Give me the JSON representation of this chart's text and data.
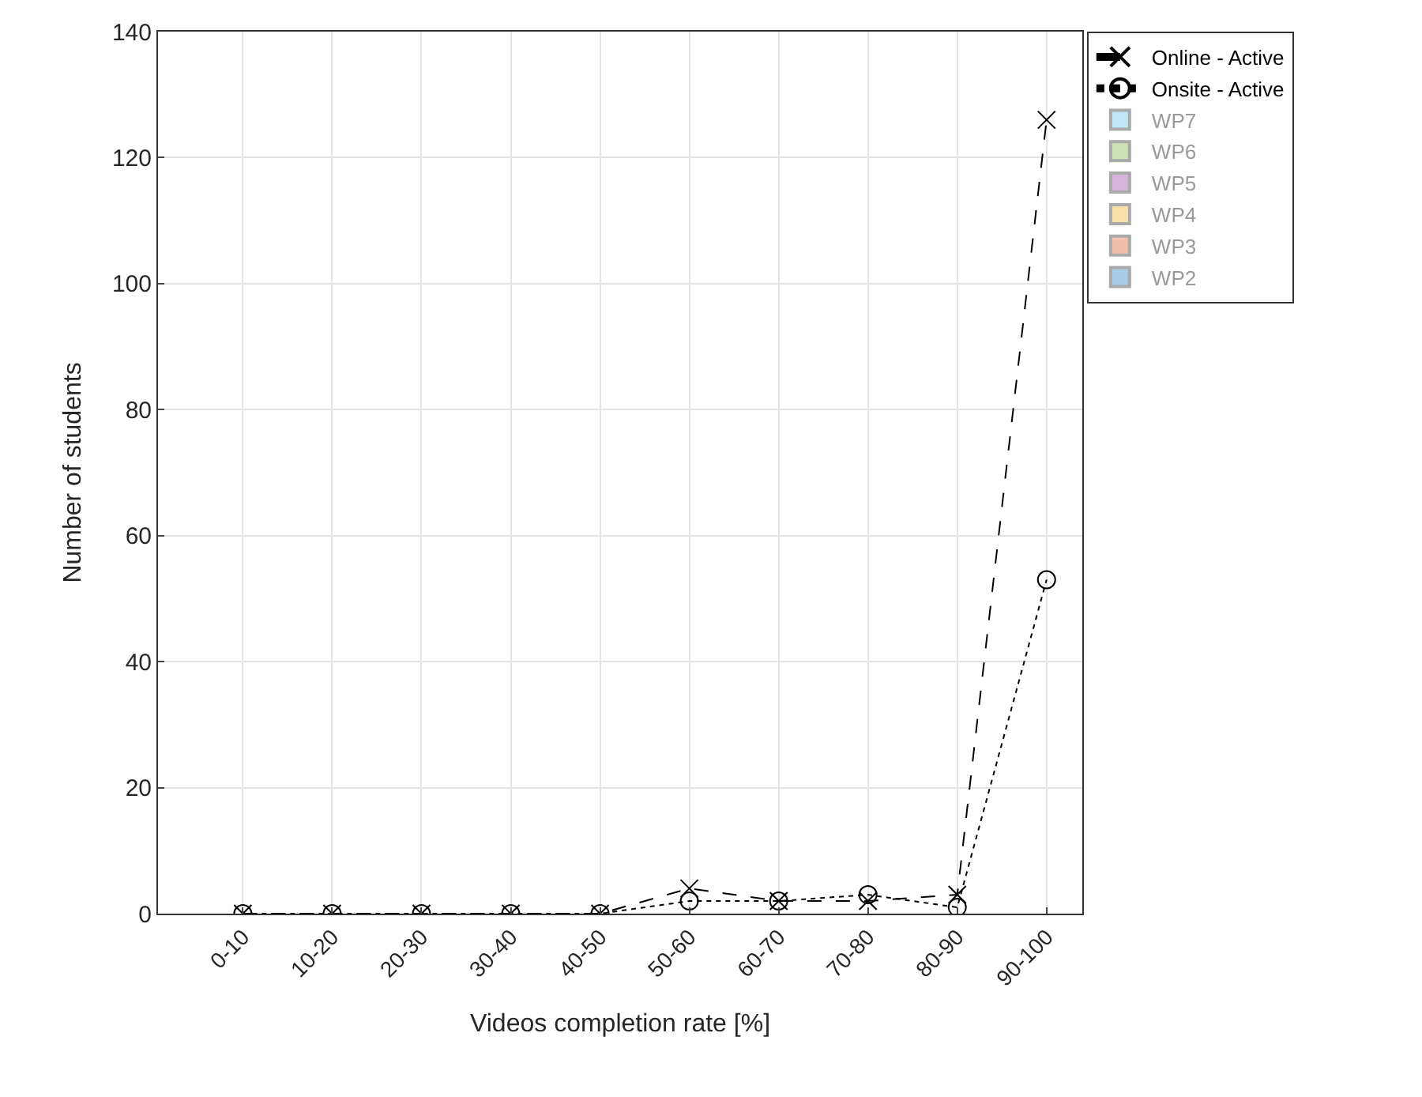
{
  "chart_data": {
    "type": "line",
    "xlabel": "Videos completion rate [%]",
    "ylabel": "Number of students",
    "categories": [
      "0-10",
      "10-20",
      "20-30",
      "30-40",
      "40-50",
      "50-60",
      "60-70",
      "70-80",
      "80-90",
      "90-100"
    ],
    "series": [
      {
        "name": "Online - Active",
        "color": "#000000",
        "marker": "cross",
        "line_style": "dashed",
        "values": [
          0,
          0,
          0,
          0,
          0,
          4,
          2,
          2,
          3,
          126
        ]
      },
      {
        "name": "Onsite - Active",
        "color": "#000000",
        "marker": "circle",
        "line_style": "dotted",
        "values": [
          0,
          0,
          0,
          0,
          0,
          2,
          2,
          3,
          1,
          53
        ]
      },
      {
        "name": "WP7",
        "type": "bar",
        "color": "#bfe6f7",
        "values": [
          null,
          null,
          null,
          null,
          null,
          null,
          null,
          null,
          null,
          null
        ]
      },
      {
        "name": "WP6",
        "type": "bar",
        "color": "#cfe2b6",
        "values": [
          null,
          null,
          null,
          null,
          null,
          null,
          null,
          null,
          null,
          null
        ]
      },
      {
        "name": "WP5",
        "type": "bar",
        "color": "#d4b5d9",
        "values": [
          null,
          null,
          null,
          null,
          null,
          null,
          null,
          null,
          null,
          null
        ]
      },
      {
        "name": "WP4",
        "type": "bar",
        "color": "#f8e2aa",
        "values": [
          null,
          null,
          null,
          null,
          null,
          null,
          null,
          null,
          null,
          null
        ]
      },
      {
        "name": "WP3",
        "type": "bar",
        "color": "#f2c0aa",
        "values": [
          null,
          null,
          null,
          null,
          null,
          null,
          null,
          null,
          null,
          null
        ]
      },
      {
        "name": "WP2",
        "type": "bar",
        "color": "#a8cde8",
        "values": [
          null,
          null,
          null,
          null,
          null,
          null,
          null,
          null,
          null,
          null
        ]
      }
    ],
    "ylim": [
      0,
      140
    ],
    "yticks": [
      0,
      20,
      40,
      60,
      80,
      100,
      120,
      140
    ],
    "grid": true,
    "legend": "top right"
  }
}
